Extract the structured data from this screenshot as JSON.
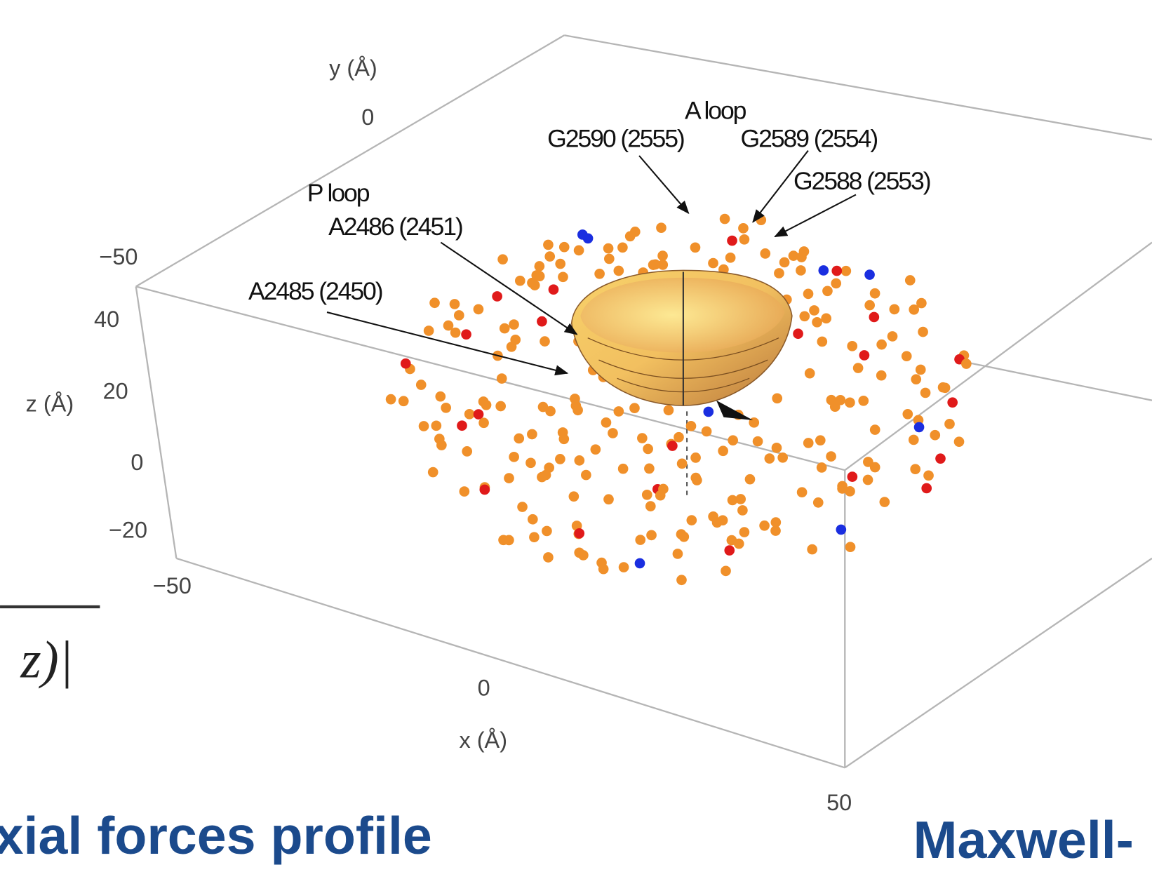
{
  "figure": {
    "axes": {
      "y_label": "y (Å)",
      "z_label": "z (Å)",
      "x_label": "x (Å)",
      "y_ticks": [
        "0",
        "−50"
      ],
      "z_ticks": [
        "40",
        "20",
        "0",
        "−20"
      ],
      "x_ticks": [
        "−50",
        "0",
        "50"
      ]
    },
    "annotations": {
      "a_loop": "A loop",
      "g2590": "G2590 (2555)",
      "g2589": "G2589 (2554)",
      "g2588": "G2588 (2553)",
      "p_loop": "P loop",
      "a2486": "A2486 (2451)",
      "a2485": "A2485 (2450)"
    }
  },
  "slide_text": {
    "left_caption": "xial forces profile",
    "right_caption": "Maxwell-",
    "formula_fragment": "z)|"
  }
}
